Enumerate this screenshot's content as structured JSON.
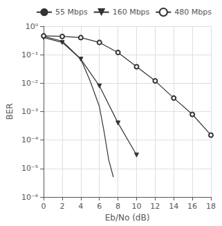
{
  "chart_data": {
    "type": "line",
    "xlabel": "Eb/No (dB)",
    "ylabel": "BER",
    "log": "y",
    "grid": true,
    "legend": "upper right",
    "xlim": [
      0,
      18
    ],
    "xticks": [
      0,
      2,
      4,
      6,
      8,
      10,
      12,
      14,
      16,
      18
    ],
    "ylim": [
      1e-06,
      1
    ],
    "yticks": [
      {
        "value": 1e-06,
        "label": "10⁻⁶"
      },
      {
        "value": 1e-05,
        "label": "10⁻⁵"
      },
      {
        "value": 0.0001,
        "label": "10⁻⁴"
      },
      {
        "value": 0.001,
        "label": "10⁻³"
      },
      {
        "value": 0.01,
        "label": "10⁻²"
      },
      {
        "value": 0.1,
        "label": "10⁻¹"
      },
      {
        "value": 1,
        "label": "10⁰"
      }
    ],
    "series": [
      {
        "name": "55 Mbps",
        "color": "#333333",
        "marker": "none",
        "x": [
          0,
          2,
          4,
          5,
          6,
          6.5,
          7,
          7.5
        ],
        "values": [
          0.44,
          0.3,
          0.07,
          0.012,
          0.0015,
          0.0002,
          2e-05,
          5e-06
        ]
      },
      {
        "name": "160 Mbps",
        "color": "#333333",
        "marker": "triangle_down",
        "x": [
          0,
          2,
          4,
          6,
          8,
          10
        ],
        "values": [
          0.4,
          0.27,
          0.07,
          0.008,
          0.0004,
          3e-05
        ]
      },
      {
        "name": "480 Mbps",
        "color": "#333333",
        "marker": "circle",
        "x": [
          0,
          2,
          4,
          6,
          8,
          10,
          12,
          14,
          16,
          18
        ],
        "values": [
          0.46,
          0.44,
          0.4,
          0.27,
          0.12,
          0.038,
          0.012,
          0.003,
          0.0008,
          0.00015
        ]
      }
    ]
  }
}
